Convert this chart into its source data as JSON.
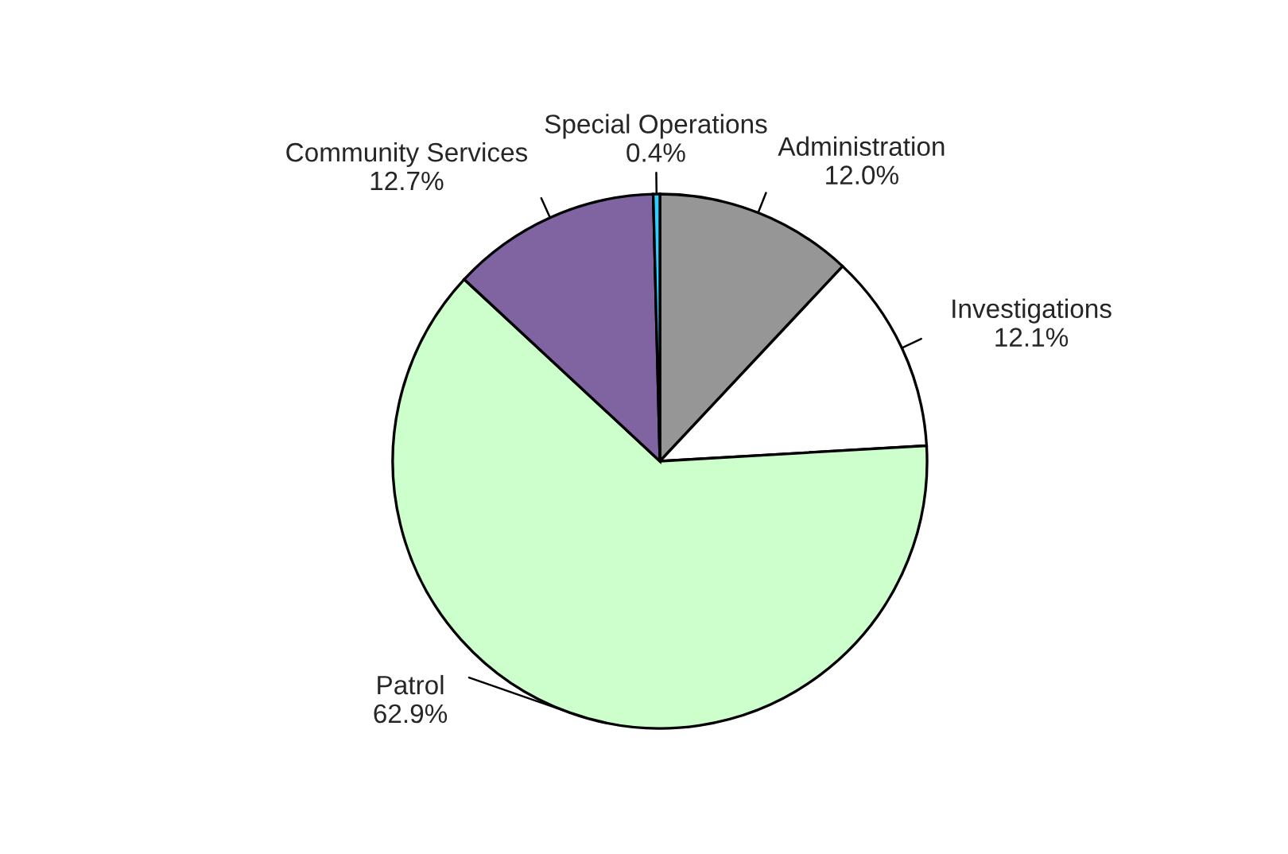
{
  "chart_data": {
    "type": "pie",
    "categories": [
      "Administration",
      "Investigations",
      "Patrol",
      "Community Services",
      "Special Operations"
    ],
    "values": [
      12.0,
      12.1,
      62.9,
      12.7,
      0.4
    ],
    "colors": [
      "#969696",
      "#ffffff",
      "#ccffcc",
      "#8064a2",
      "#33ccff"
    ],
    "value_labels": [
      "12.0%",
      "12.1%",
      "62.9%",
      "12.7%",
      "0.4%"
    ],
    "legend": false
  }
}
